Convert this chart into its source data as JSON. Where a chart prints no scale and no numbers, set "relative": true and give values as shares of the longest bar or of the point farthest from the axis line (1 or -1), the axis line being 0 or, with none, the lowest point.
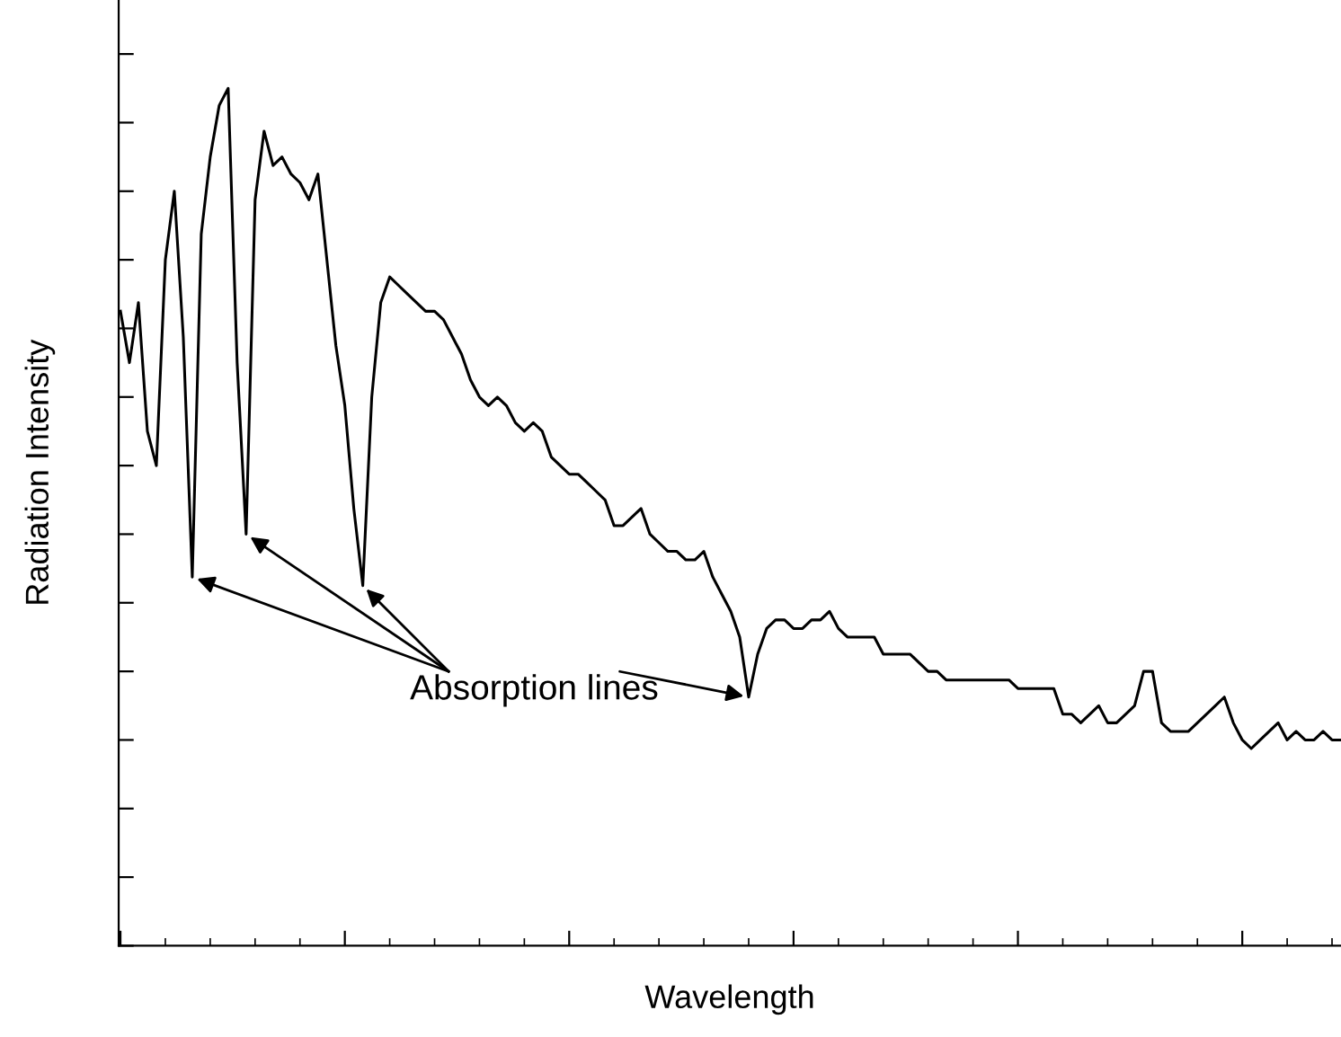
{
  "chart_data": {
    "type": "line",
    "relative": true,
    "xlabel": "Wavelength",
    "ylabel": "Radiation Intensity",
    "annotations": [
      "Absorption lines"
    ],
    "categories": [
      null,
      null,
      null,
      null,
      null,
      null,
      null,
      null,
      null,
      null,
      null,
      null,
      null,
      null,
      null,
      null,
      null,
      null,
      null,
      null,
      null,
      null,
      null,
      null,
      null,
      null,
      null,
      null,
      null,
      null,
      null,
      null,
      null,
      null,
      null,
      null,
      null,
      null,
      null,
      null,
      null,
      null,
      null,
      null,
      null,
      null,
      null,
      null,
      null,
      null,
      null,
      null,
      null,
      null,
      null,
      null,
      null,
      null,
      null,
      null,
      null,
      null,
      null,
      null,
      null,
      null,
      null,
      null,
      null,
      null,
      null,
      null,
      null,
      null,
      null,
      null,
      null,
      null,
      null,
      null,
      null,
      null,
      null,
      null,
      null,
      null,
      null,
      null,
      null,
      null,
      null,
      null,
      null,
      null,
      null,
      null,
      null,
      null,
      null,
      null,
      null,
      null,
      null,
      null,
      null,
      null,
      null,
      null,
      null,
      null,
      null,
      null,
      null,
      null,
      null,
      null,
      null,
      null,
      null,
      null,
      null,
      null,
      null,
      null,
      null,
      null,
      null,
      null,
      null,
      null,
      null,
      null,
      null,
      null,
      null,
      null,
      null
    ],
    "series": [
      {
        "color": "#000000",
        "values": [
          0.74,
          0.68,
          0.75,
          0.6,
          0.56,
          0.8,
          0.88,
          0.71,
          0.43,
          0.83,
          0.92,
          0.98,
          1.0,
          0.68,
          0.48,
          0.87,
          0.95,
          0.91,
          0.92,
          0.9,
          0.89,
          0.87,
          0.9,
          0.8,
          0.7,
          0.63,
          0.51,
          0.42,
          0.64,
          0.75,
          0.78,
          0.77,
          0.76,
          0.75,
          0.74,
          0.74,
          0.73,
          0.71,
          0.69,
          0.66,
          0.64,
          0.63,
          0.64,
          0.63,
          0.61,
          0.6,
          0.61,
          0.6,
          0.57,
          0.56,
          0.55,
          0.55,
          0.54,
          0.53,
          0.52,
          0.49,
          0.49,
          0.5,
          0.51,
          0.48,
          0.47,
          0.46,
          0.46,
          0.45,
          0.45,
          0.46,
          0.43,
          0.41,
          0.39,
          0.36,
          0.29,
          0.34,
          0.37,
          0.38,
          0.38,
          0.37,
          0.37,
          0.38,
          0.38,
          0.39,
          0.37,
          0.36,
          0.36,
          0.36,
          0.36,
          0.34,
          0.34,
          0.34,
          0.34,
          0.33,
          0.32,
          0.32,
          0.31,
          0.31,
          0.31,
          0.31,
          0.31,
          0.31,
          0.31,
          0.31,
          0.3,
          0.3,
          0.3,
          0.3,
          0.3,
          0.27,
          0.27,
          0.26,
          0.27,
          0.28,
          0.26,
          0.26,
          0.27,
          0.28,
          0.32,
          0.32,
          0.26,
          0.25,
          0.25,
          0.25,
          0.26,
          0.27,
          0.28,
          0.29,
          0.26,
          0.24,
          0.23,
          0.24,
          0.25,
          0.26,
          0.24,
          0.25,
          0.24,
          0.24,
          0.25,
          0.24,
          0.24
        ]
      }
    ]
  }
}
